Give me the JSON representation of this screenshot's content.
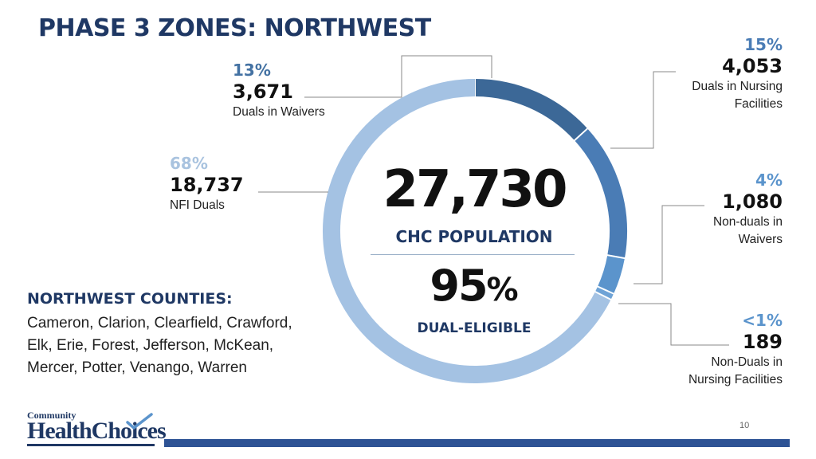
{
  "title": "PHASE 3 ZONES: NORTHWEST",
  "center": {
    "total": "27,730",
    "total_label": "CHC POPULATION",
    "dual_pct_value": "95",
    "dual_pct_sign": "%",
    "dual_label": "DUAL-ELIGIBLE"
  },
  "segments": [
    {
      "pct": "13%",
      "count": "3,671",
      "desc_lines": [
        "Duals in Waivers"
      ],
      "color": "#3c6897",
      "pct_color": "#4472a3"
    },
    {
      "pct": "15%",
      "count": "4,053",
      "desc_lines": [
        "Duals in Nursing",
        "Facilities"
      ],
      "color": "#4a7cb5",
      "pct_color": "#4a7cb5"
    },
    {
      "pct": "4%",
      "count": "1,080",
      "desc_lines": [
        "Non-duals in",
        "Waivers"
      ],
      "color": "#5b94cc",
      "pct_color": "#5b94cc"
    },
    {
      "pct": "<1%",
      "count": "189",
      "desc_lines": [
        "Non-Duals in",
        "Nursing Facilities"
      ],
      "color": "#6fa3d6",
      "pct_color": "#5b94cc"
    },
    {
      "pct": "68%",
      "count": "18,737",
      "desc_lines": [
        "NFI Duals"
      ],
      "color": "#a4c2e3",
      "pct_color": "#a9c3df"
    }
  ],
  "chart_data": {
    "type": "pie",
    "categories": [
      "Duals in Waivers",
      "Duals in Nursing Facilities",
      "Non-duals in Waivers",
      "Non-Duals in Nursing Facilities",
      "NFI Duals"
    ],
    "values": [
      3671,
      4053,
      1080,
      189,
      18737
    ],
    "percent_labels": [
      "13%",
      "15%",
      "4%",
      "<1%",
      "68%"
    ],
    "total": 27730,
    "donut": true
  },
  "counties": {
    "heading": "NORTHWEST COUNTIES:",
    "lines": [
      "Cameron, Clarion, Clearfield, Crawford,",
      "Elk, Erie, Forest, Jefferson, McKean,",
      "Mercer, Potter, Venango, Warren"
    ]
  },
  "logo": {
    "small": "Community",
    "large": "HealthChoices"
  },
  "page_number": "10",
  "colors": {
    "title": "#1f3864",
    "footer_bar": "#2e5395"
  }
}
